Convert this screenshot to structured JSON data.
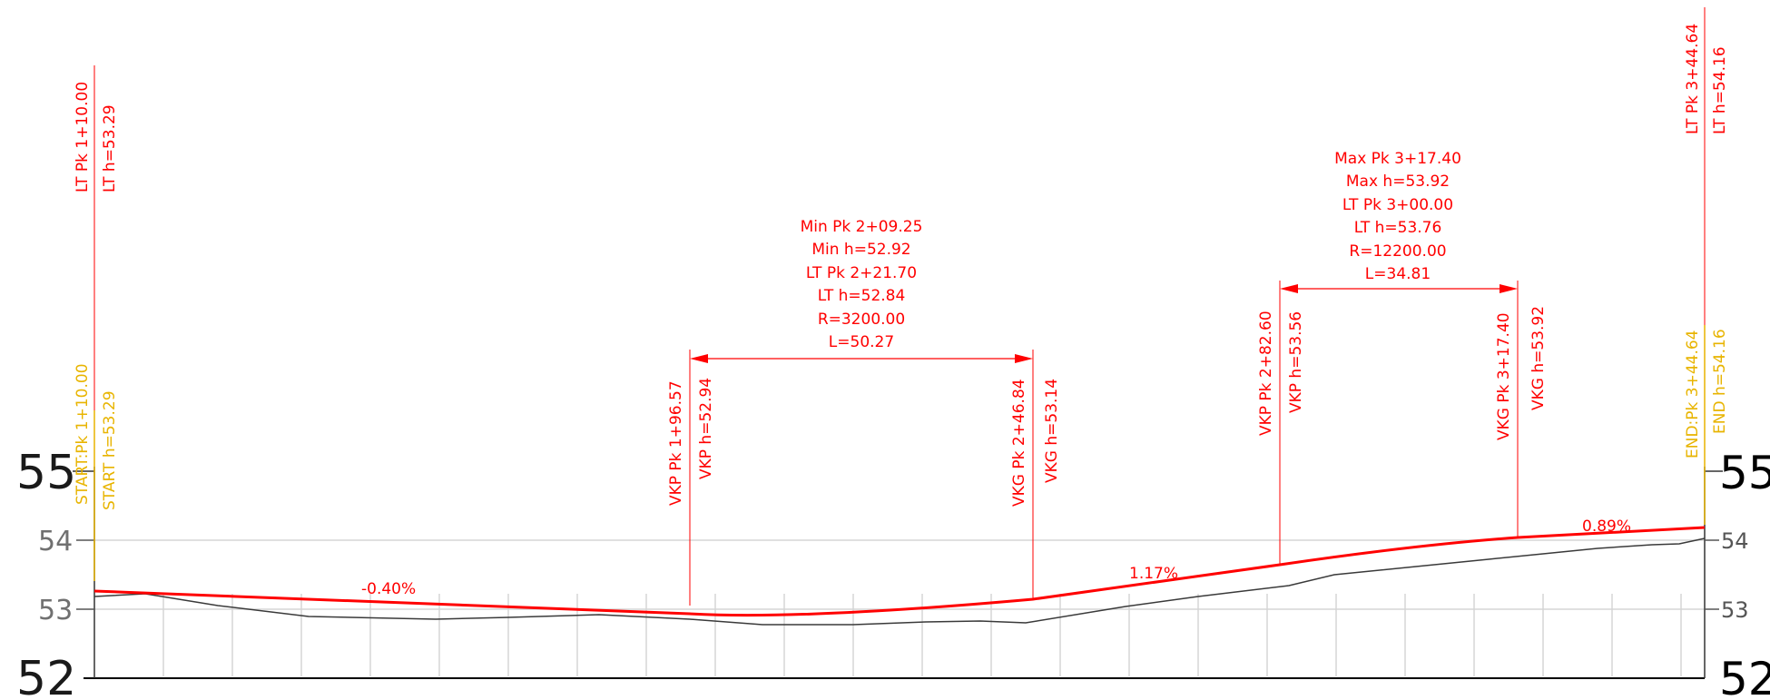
{
  "colors": {
    "design_line": "#ff0000",
    "ground_line": "#3a3a3a",
    "annotation": "#ff0000",
    "start_end_labels": "#e8b400",
    "grid": "#d6d6d6",
    "baseline": "#000000"
  },
  "axis": {
    "left_labels": [
      "55",
      "54",
      "53",
      "52"
    ],
    "right_labels": [
      "55",
      "54",
      "53",
      "52"
    ]
  },
  "start": {
    "pk": "START:Pk 1+10.00",
    "h": "START h=53.29"
  },
  "end": {
    "pk": "END:Pk 3+44.64",
    "h": "END h=54.16"
  },
  "lt_start": {
    "pk": "LT Pk 1+10.00",
    "h": "LT h=53.29"
  },
  "lt_end": {
    "pk": "LT Pk 3+44.64",
    "h": "LT h=54.16"
  },
  "curve1": {
    "vkp_pk": "VKP Pk 1+96.57",
    "vkp_h": "VKP h=52.94",
    "vkg_pk": "VKG Pk 2+46.84",
    "vkg_h": "VKG h=53.14",
    "info": [
      "Min Pk 2+09.25",
      "Min h=52.92",
      "LT Pk 2+21.70",
      "LT h=52.84",
      "R=3200.00",
      "L=50.27"
    ]
  },
  "curve2": {
    "vkp_pk": "VKP Pk 2+82.60",
    "vkp_h": "VKP h=53.56",
    "vkg_pk": "VKG Pk 3+17.40",
    "vkg_h": "VKG h=53.92",
    "info": [
      "Max Pk 3+17.40",
      "Max h=53.92",
      "LT Pk 3+00.00",
      "LT h=53.76",
      "R=12200.00",
      "L=34.81"
    ]
  },
  "grades": [
    "-0.40%",
    "1.17%",
    "0.89%"
  ]
}
